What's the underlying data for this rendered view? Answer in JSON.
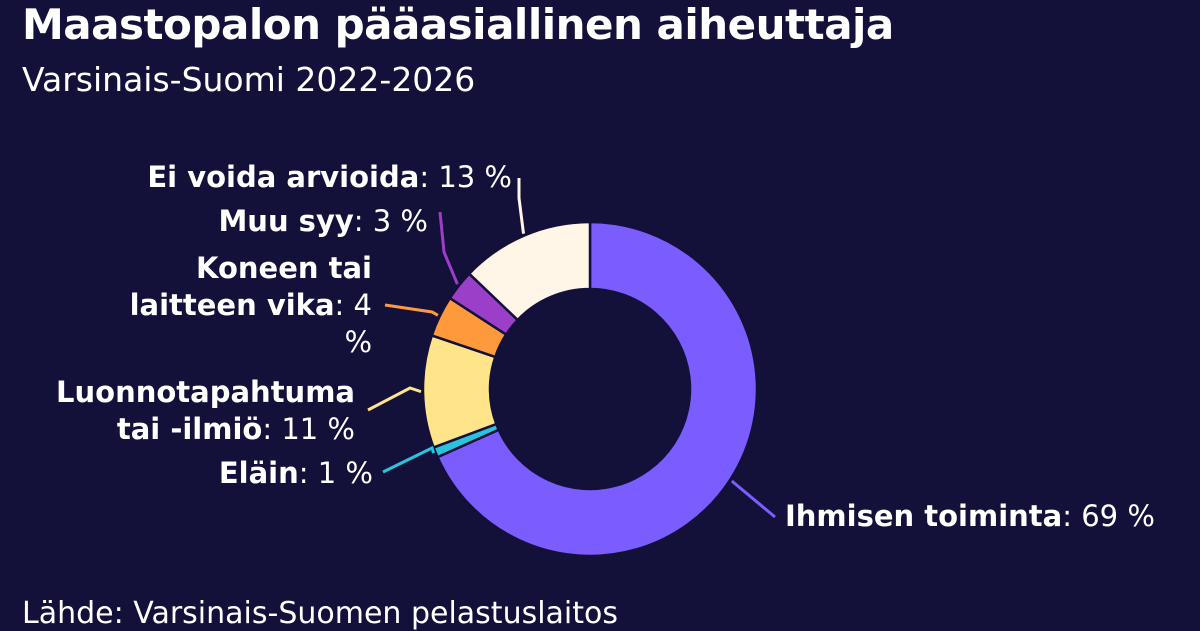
{
  "chart_data": {
    "type": "pie",
    "title": "Maastopalon pääasiallinen aiheuttaja",
    "subtitle": "Varsinais-Suomi 2022-2026",
    "source": "Lähde: Varsinais-Suomen pelastuslaitos",
    "unit": "%",
    "donut": true,
    "slices": [
      {
        "label": "Ihmisen toiminta",
        "value": 69,
        "value_text": "69 %",
        "color": "#7b5cff"
      },
      {
        "label": "Eläin",
        "value": 1,
        "value_text": "1 %",
        "color": "#29c3dc"
      },
      {
        "label": "Luonnotapahtuma tai -ilmiö",
        "value": 11,
        "value_text": "11 %",
        "color": "#ffe48a"
      },
      {
        "label": "Koneen tai laitteen vika",
        "value": 4,
        "value_text": "4 %",
        "color": "#ff9a3c"
      },
      {
        "label": "Muu syy",
        "value": 3,
        "value_text": "3 %",
        "color": "#9b3fc8"
      },
      {
        "label": "Ei voida arvioida",
        "value": 13,
        "value_text": "13 %",
        "color": "#fff6e8"
      }
    ]
  }
}
